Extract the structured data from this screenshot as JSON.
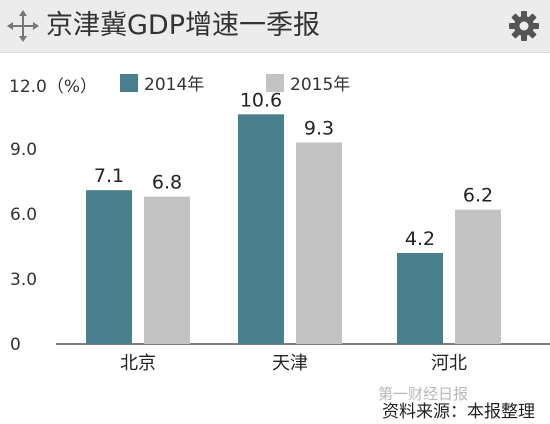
{
  "header": {
    "title": "京津冀GDP增速一季报",
    "left_icon": "move-icon",
    "right_icon": "gear-icon"
  },
  "chart_data": {
    "type": "bar",
    "title": "京津冀GDP增速一季报",
    "ylabel": "12.0（%）",
    "ylim": [
      0,
      12
    ],
    "yticks": [
      "0",
      "3.0",
      "6.0",
      "9.0"
    ],
    "grid": false,
    "legend_position": "top",
    "categories": [
      "北京",
      "天津",
      "河北"
    ],
    "series": [
      {
        "name": "2014年",
        "values": [
          7.1,
          10.6,
          4.2
        ],
        "value_labels": [
          "7.1",
          "10.6",
          "4.2"
        ],
        "color": "#4a7f8d"
      },
      {
        "name": "2015年",
        "values": [
          6.8,
          9.3,
          6.2
        ],
        "value_labels": [
          "6.8",
          "9.3",
          "6.2"
        ],
        "color": "#c3c3c3"
      }
    ]
  },
  "footer": {
    "watermark": "第一财经日报",
    "source": "资料来源：本报整理"
  },
  "colors": {
    "header_bg": "#ececec",
    "series_2014": "#4a7f8d",
    "series_2015": "#c3c3c3",
    "text": "#333333"
  }
}
